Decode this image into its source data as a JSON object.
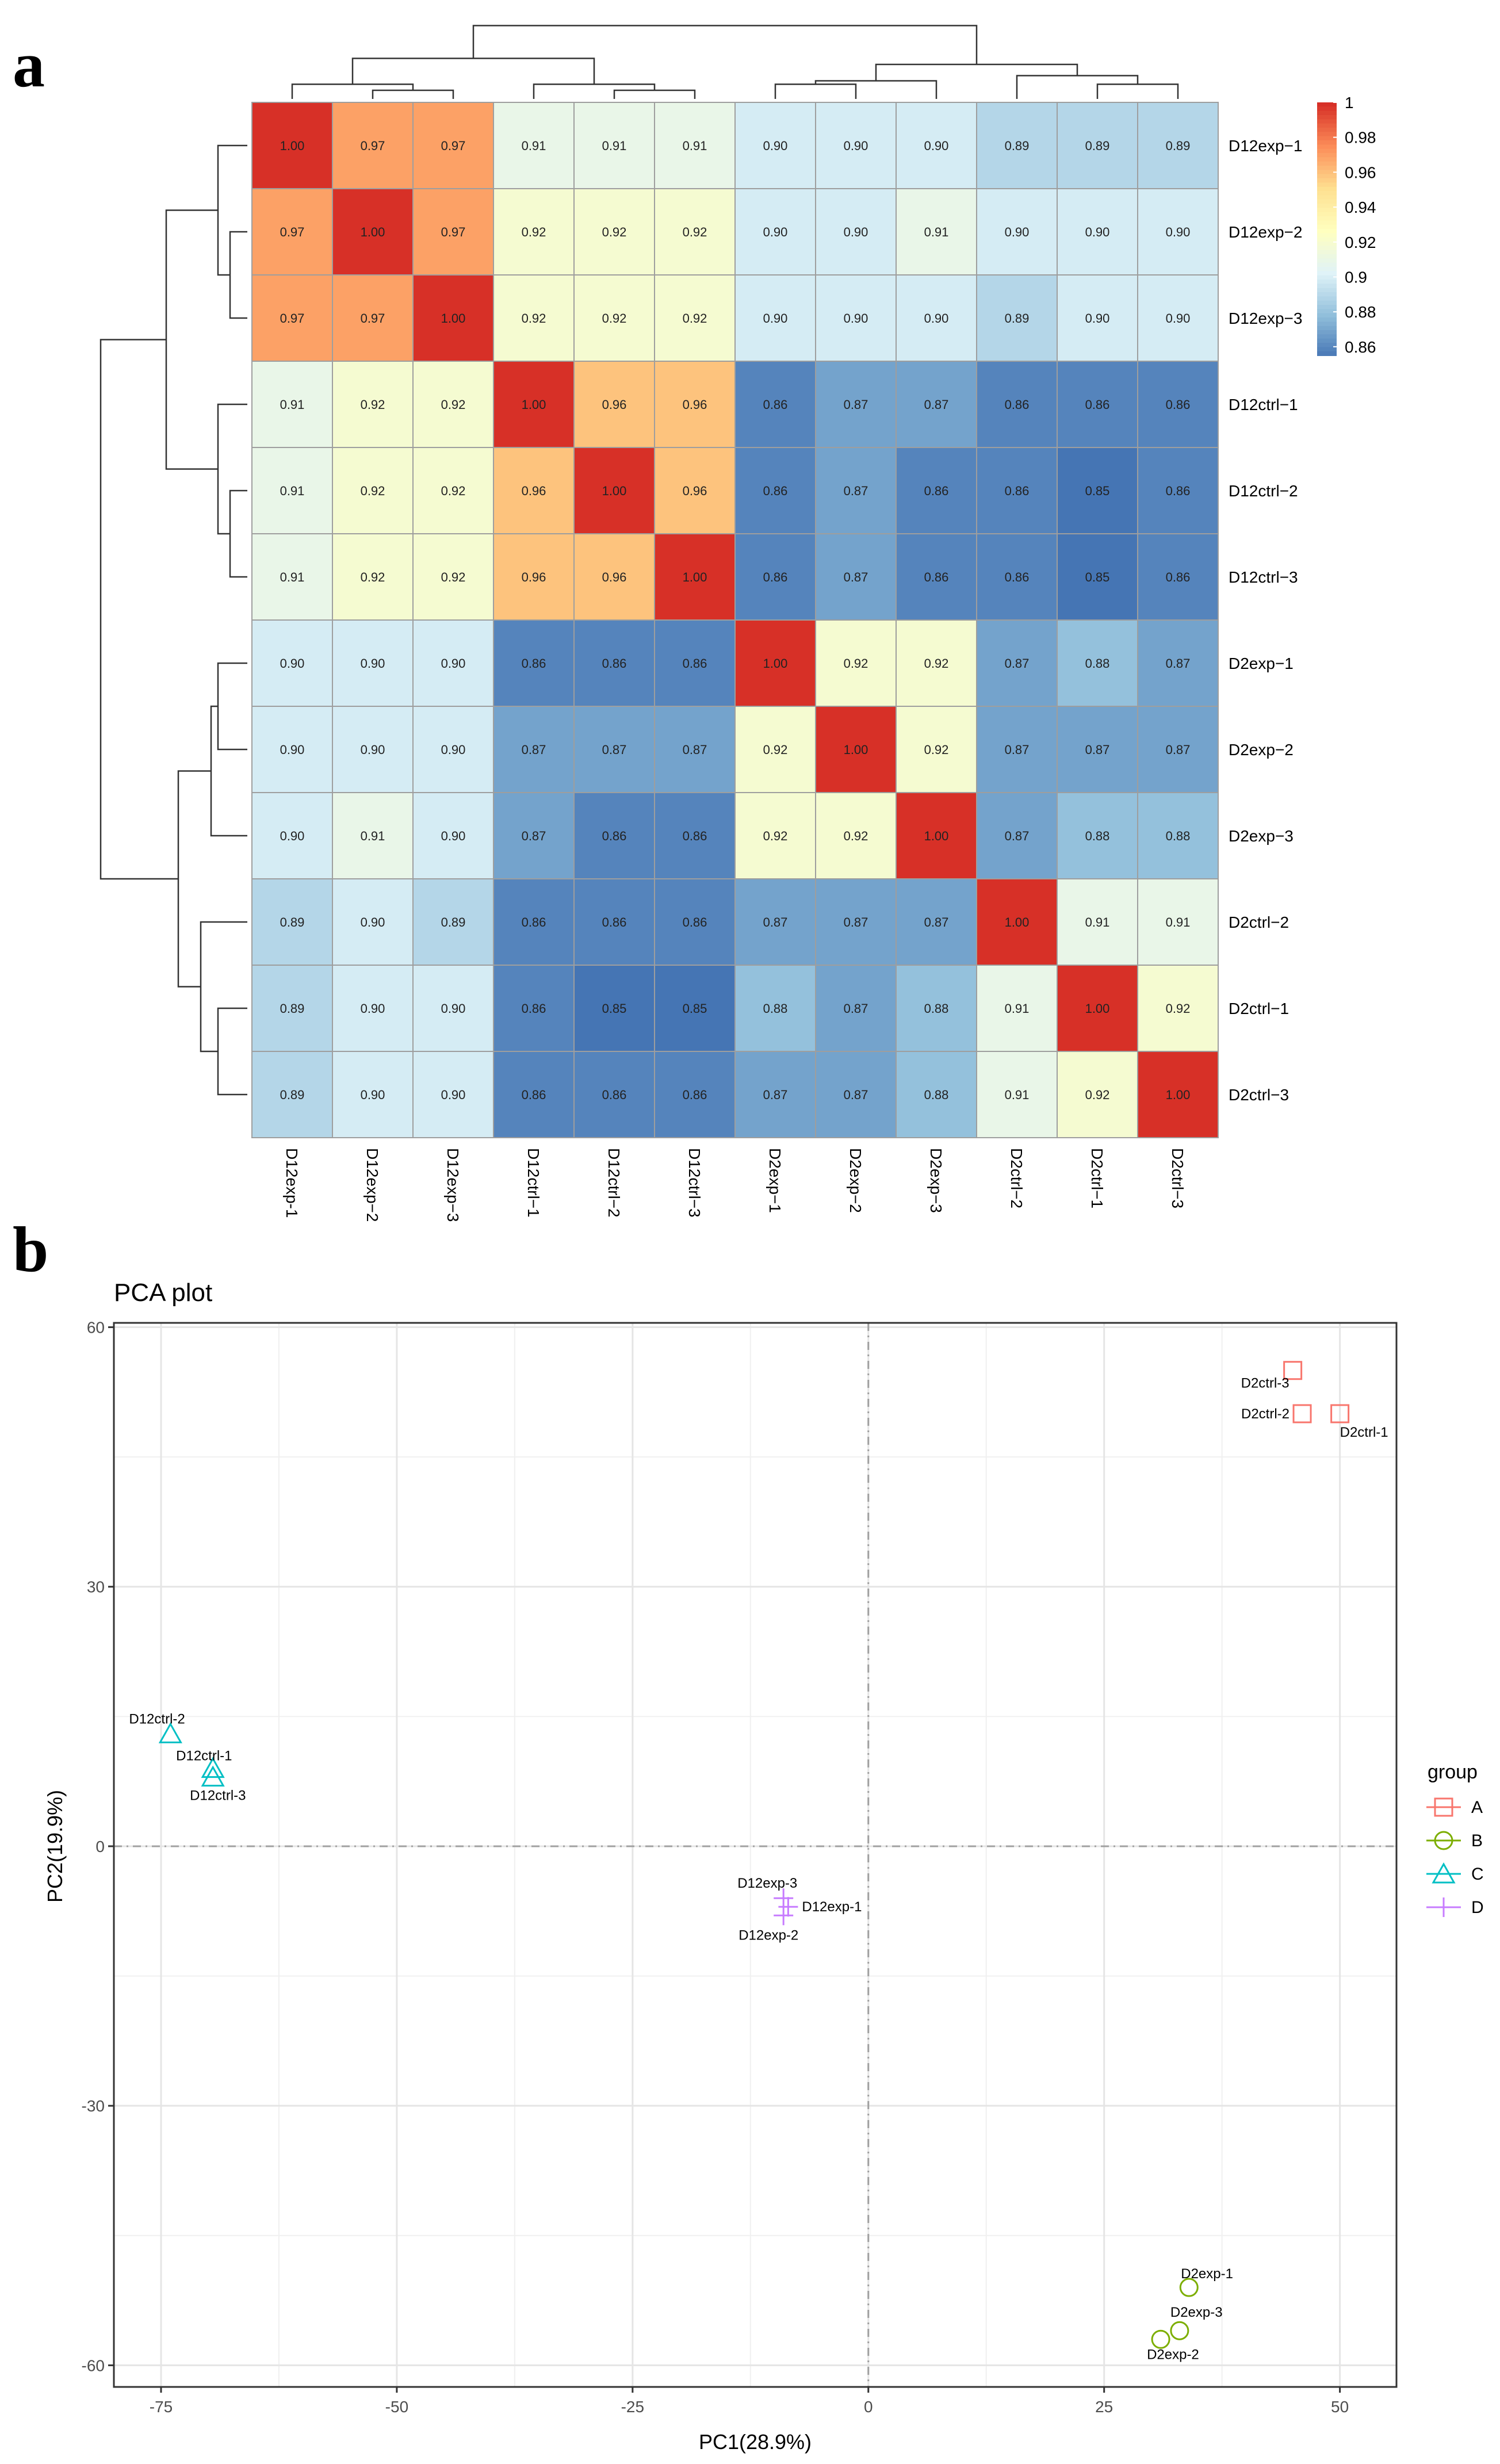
{
  "panel_labels": {
    "a": "a",
    "b": "b"
  },
  "chart_data": [
    {
      "type": "heatmap",
      "rows": [
        "D12exp-1",
        "D12exp-2",
        "D12exp-3",
        "D12ctrl-1",
        "D12ctrl-2",
        "D12ctrl-3",
        "D2exp-1",
        "D2exp-2",
        "D2exp-3",
        "D2ctrl-2",
        "D2ctrl-1",
        "D2ctrl-3"
      ],
      "row_labels": [
        "D12exp−1",
        "D12exp−2",
        "D12exp−3",
        "D12ctrl−1",
        "D12ctrl−2",
        "D12ctrl−3",
        "D2exp−1",
        "D2exp−2",
        "D2exp−3",
        "D2ctrl−2",
        "D2ctrl−1",
        "D2ctrl−3"
      ],
      "col_labels": [
        "D12exp-1",
        "D12exp−2",
        "D12exp−3",
        "D12ctrl−1",
        "D12ctrl−2",
        "D12ctrl−3",
        "D2exp−1",
        "D2exp−2",
        "D2exp−3",
        "D2ctrl−2",
        "D2ctrl−1",
        "D2ctrl−3"
      ],
      "values": [
        [
          1.0,
          0.97,
          0.97,
          0.91,
          0.91,
          0.91,
          0.9,
          0.9,
          0.9,
          0.89,
          0.89,
          0.89
        ],
        [
          0.97,
          1.0,
          0.97,
          0.92,
          0.92,
          0.92,
          0.9,
          0.9,
          0.91,
          0.9,
          0.9,
          0.9
        ],
        [
          0.97,
          0.97,
          1.0,
          0.92,
          0.92,
          0.92,
          0.9,
          0.9,
          0.9,
          0.89,
          0.9,
          0.9
        ],
        [
          0.91,
          0.92,
          0.92,
          1.0,
          0.96,
          0.96,
          0.86,
          0.87,
          0.87,
          0.86,
          0.86,
          0.86
        ],
        [
          0.91,
          0.92,
          0.92,
          0.96,
          1.0,
          0.96,
          0.86,
          0.87,
          0.86,
          0.86,
          0.85,
          0.86
        ],
        [
          0.91,
          0.92,
          0.92,
          0.96,
          0.96,
          1.0,
          0.86,
          0.87,
          0.86,
          0.86,
          0.85,
          0.86
        ],
        [
          0.9,
          0.9,
          0.9,
          0.86,
          0.86,
          0.86,
          1.0,
          0.92,
          0.92,
          0.87,
          0.88,
          0.87
        ],
        [
          0.9,
          0.9,
          0.9,
          0.87,
          0.87,
          0.87,
          0.92,
          1.0,
          0.92,
          0.87,
          0.87,
          0.87
        ],
        [
          0.9,
          0.91,
          0.9,
          0.87,
          0.86,
          0.86,
          0.92,
          0.92,
          1.0,
          0.87,
          0.88,
          0.88
        ],
        [
          0.89,
          0.9,
          0.89,
          0.86,
          0.86,
          0.86,
          0.87,
          0.87,
          0.87,
          1.0,
          0.91,
          0.91
        ],
        [
          0.89,
          0.9,
          0.9,
          0.86,
          0.85,
          0.85,
          0.88,
          0.87,
          0.88,
          0.91,
          1.0,
          0.92
        ],
        [
          0.89,
          0.9,
          0.9,
          0.86,
          0.86,
          0.86,
          0.87,
          0.87,
          0.88,
          0.91,
          0.92,
          1.0
        ]
      ],
      "cell_text": [
        [
          "1.00",
          "0.97",
          "0.97",
          "0.91",
          "0.91",
          "0.91",
          "0.90",
          "0.90",
          "0.90",
          "0.89",
          "0.89",
          "0.89"
        ],
        [
          "0.97",
          "1.00",
          "0.97",
          "0.92",
          "0.92",
          "0.92",
          "0.90",
          "0.90",
          "0.91",
          "0.90",
          "0.90",
          "0.90"
        ],
        [
          "0.97",
          "0.97",
          "1.00",
          "0.92",
          "0.92",
          "0.92",
          "0.90",
          "0.90",
          "0.90",
          "0.89",
          "0.90",
          "0.90"
        ],
        [
          "0.91",
          "0.92",
          "0.92",
          "1.00",
          "0.96",
          "0.96",
          "0.86",
          "0.87",
          "0.87",
          "0.86",
          "0.86",
          "0.86"
        ],
        [
          "0.91",
          "0.92",
          "0.92",
          "0.96",
          "1.00",
          "0.96",
          "0.86",
          "0.87",
          "0.86",
          "0.86",
          "0.85",
          "0.86"
        ],
        [
          "0.91",
          "0.92",
          "0.92",
          "0.96",
          "0.96",
          "1.00",
          "0.86",
          "0.87",
          "0.86",
          "0.86",
          "0.85",
          "0.86"
        ],
        [
          "0.90",
          "0.90",
          "0.90",
          "0.86",
          "0.86",
          "0.86",
          "1.00",
          "0.92",
          "0.92",
          "0.87",
          "0.88",
          "0.87"
        ],
        [
          "0.90",
          "0.90",
          "0.90",
          "0.87",
          "0.87",
          "0.87",
          "0.92",
          "1.00",
          "0.92",
          "0.87",
          "0.87",
          "0.87"
        ],
        [
          "0.90",
          "0.91",
          "0.90",
          "0.87",
          "0.86",
          "0.86",
          "0.92",
          "0.92",
          "1.00",
          "0.87",
          "0.88",
          "0.88"
        ],
        [
          "0.89",
          "0.90",
          "0.89",
          "0.86",
          "0.86",
          "0.86",
          "0.87",
          "0.87",
          "0.87",
          "1.00",
          "0.91",
          "0.91"
        ],
        [
          "0.89",
          "0.90",
          "0.90",
          "0.86",
          "0.85",
          "0.85",
          "0.88",
          "0.87",
          "0.88",
          "0.91",
          "1.00",
          "0.92"
        ],
        [
          "0.89",
          "0.90",
          "0.90",
          "0.86",
          "0.86",
          "0.86",
          "0.87",
          "0.87",
          "0.88",
          "0.91",
          "0.92",
          "1.00"
        ]
      ],
      "color_scale": {
        "min": 0.855,
        "max": 1.0,
        "colors": [
          "#4575b4",
          "#91bfdb",
          "#e0f3f8",
          "#ffffbf",
          "#fee090",
          "#fc8d59",
          "#d73027"
        ]
      },
      "colorbar_ticks": [
        {
          "value": 0.86,
          "label": "0.86"
        },
        {
          "value": 0.88,
          "label": "0.88"
        },
        {
          "value": 0.9,
          "label": "0.9"
        },
        {
          "value": 0.92,
          "label": "0.92"
        },
        {
          "value": 0.94,
          "label": "0.94"
        },
        {
          "value": 0.96,
          "label": "0.96"
        },
        {
          "value": 0.98,
          "label": "0.98"
        },
        {
          "value": 1.0,
          "label": "1"
        }
      ],
      "dendrogram": "hierarchical clustering on rows and columns"
    },
    {
      "type": "scatter",
      "title": "PCA plot",
      "xlabel": "PC1(28.9%)",
      "ylabel": "PC2(19.9%)",
      "xlim": [
        -80,
        56
      ],
      "ylim": [
        -62.5,
        60.5
      ],
      "xticks": [
        -75,
        -50,
        -25,
        0,
        25,
        50
      ],
      "yticks": [
        -60,
        -30,
        0,
        30,
        60
      ],
      "xtick_labels": [
        "-75",
        "-50",
        "-25",
        "0",
        "25",
        "50"
      ],
      "ytick_labels": [
        "-60",
        "-30",
        "0",
        "30",
        "60"
      ],
      "grid": true,
      "legend_title": "group",
      "legend_position": "right",
      "series": [
        {
          "name": "A",
          "marker": "square",
          "color": "#F8766D",
          "points": [
            {
              "label": "D2ctrl-3",
              "x": 45,
              "y": 55
            },
            {
              "label": "D2ctrl-2",
              "x": 46,
              "y": 50
            },
            {
              "label": "D2ctrl-1",
              "x": 50,
              "y": 50
            }
          ]
        },
        {
          "name": "B",
          "marker": "circle",
          "color": "#7CAE00",
          "points": [
            {
              "label": "D2exp-1",
              "x": 34,
              "y": -51
            },
            {
              "label": "D2exp-3",
              "x": 33,
              "y": -56
            },
            {
              "label": "D2exp-2",
              "x": 31,
              "y": -57
            }
          ]
        },
        {
          "name": "C",
          "marker": "triangle",
          "color": "#00BFC4",
          "points": [
            {
              "label": "D12ctrl-2",
              "x": -74,
              "y": 13
            },
            {
              "label": "D12ctrl-1",
              "x": -69.5,
              "y": 9
            },
            {
              "label": "D12ctrl-3",
              "x": -69.5,
              "y": 8
            }
          ]
        },
        {
          "name": "D",
          "marker": "plus",
          "color": "#C77CFF",
          "points": [
            {
              "label": "D12exp-3",
              "x": -9,
              "y": -6
            },
            {
              "label": "D12exp-1",
              "x": -8.5,
              "y": -7
            },
            {
              "label": "D12exp-2",
              "x": -9,
              "y": -8
            }
          ]
        }
      ]
    }
  ]
}
